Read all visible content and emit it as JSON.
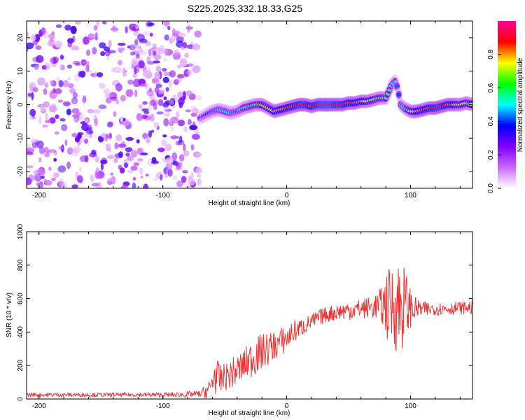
{
  "figure_title": "S225.2025.332.18.33.G25",
  "chart_data": [
    {
      "type": "heatmap",
      "title": "S225.2025.332.18.33.G25",
      "xlabel": "Height of straight line (km)",
      "ylabel": "Frequency (Hz)",
      "xlim": [
        -210,
        150
      ],
      "ylim": [
        -25,
        25
      ],
      "xticks": [
        -200,
        -100,
        0,
        100
      ],
      "xtick_labels": [
        "-200",
        "-100",
        "0",
        "100"
      ],
      "yticks": [
        -20,
        -10,
        0,
        10,
        20
      ],
      "ytick_labels": [
        "-20",
        "-10",
        "0",
        "10",
        "20"
      ],
      "colorbar": {
        "label": "Normalized spectral amplitude",
        "range": [
          0,
          1
        ],
        "ticks": [
          0.0,
          0.2,
          0.4,
          0.6,
          0.8
        ],
        "tick_labels": [
          "0.0",
          "0.2",
          "0.4",
          "0.6",
          "0.8"
        ],
        "colors": [
          "#ffffff",
          "#cc66ff",
          "#7f00ff",
          "#0000ff",
          "#00ffff",
          "#00ff00",
          "#ffff00",
          "#ff0000",
          "#ff0099"
        ]
      },
      "noise_region_x": [
        -210,
        -70
      ],
      "ridge": {
        "description": "dominant frequency track",
        "x": [
          -70,
          -65,
          -60,
          -55,
          -50,
          -45,
          -40,
          -35,
          -30,
          -25,
          -20,
          -15,
          -10,
          -5,
          0,
          5,
          10,
          15,
          20,
          25,
          30,
          35,
          40,
          45,
          50,
          55,
          60,
          65,
          70,
          75,
          80,
          85,
          88,
          90,
          92,
          95,
          100,
          105,
          110,
          115,
          120,
          125,
          130,
          135,
          140,
          145,
          150
        ],
        "y": [
          -4,
          -3,
          -2,
          -1.5,
          -2,
          -2.5,
          -2,
          -1,
          -0.5,
          0,
          0,
          -1,
          -2,
          -1.5,
          -1,
          -0.5,
          0,
          0,
          -0.5,
          0,
          0,
          0,
          0,
          0,
          0.5,
          0.5,
          1,
          1,
          1.5,
          2,
          2,
          6,
          7,
          4,
          0,
          -1,
          -2,
          -2,
          -1.5,
          -1,
          -1,
          -0.5,
          0,
          0,
          0,
          0.5,
          0
        ],
        "amplitude": [
          0.3,
          0.35,
          0.4,
          0.45,
          0.5,
          0.45,
          0.4,
          0.55,
          0.6,
          0.6,
          0.7,
          0.7,
          0.8,
          0.8,
          0.85,
          0.85,
          0.9,
          0.9,
          0.85,
          0.9,
          0.95,
          0.95,
          0.9,
          0.9,
          0.85,
          0.85,
          0.8,
          0.75,
          0.7,
          0.65,
          0.6,
          0.55,
          0.45,
          0.4,
          0.45,
          0.5,
          0.7,
          0.8,
          0.85,
          0.85,
          0.9,
          0.9,
          0.85,
          0.8,
          0.75,
          0.7,
          0.7
        ]
      }
    },
    {
      "type": "line",
      "xlabel": "Height of straight line (km)",
      "ylabel": "SNR (10 * v/v)",
      "xlim": [
        -210,
        150
      ],
      "ylim": [
        0,
        1000
      ],
      "xticks": [
        -200,
        -100,
        0,
        100
      ],
      "xtick_labels": [
        "-200",
        "-100",
        "0",
        "100"
      ],
      "yticks": [
        0,
        200,
        400,
        600,
        800,
        1000
      ],
      "ytick_labels": [
        "0",
        "200",
        "400",
        "600",
        "800",
        "1000"
      ],
      "series": [
        {
          "name": "SNR",
          "color": "#ee3333",
          "x": [
            -210,
            -180,
            -150,
            -120,
            -90,
            -70,
            -62,
            -58,
            -55,
            -50,
            -45,
            -40,
            -35,
            -30,
            -25,
            -20,
            -15,
            -10,
            -5,
            0,
            5,
            10,
            15,
            20,
            25,
            30,
            35,
            40,
            50,
            60,
            70,
            75,
            80,
            85,
            90,
            95,
            100,
            105,
            110,
            120,
            130,
            140,
            150
          ],
          "y": [
            25,
            25,
            25,
            25,
            25,
            30,
            60,
            150,
            110,
            130,
            150,
            170,
            200,
            230,
            260,
            280,
            300,
            320,
            340,
            360,
            400,
            420,
            440,
            460,
            480,
            500,
            510,
            520,
            530,
            540,
            550,
            560,
            560,
            560,
            560,
            560,
            545,
            540,
            535,
            540,
            540,
            545,
            545
          ],
          "noise_amplitude": [
            12,
            12,
            12,
            12,
            15,
            20,
            60,
            120,
            110,
            80,
            90,
            100,
            100,
            110,
            120,
            110,
            100,
            90,
            90,
            80,
            70,
            60,
            50,
            50,
            50,
            50,
            50,
            50,
            60,
            60,
            70,
            90,
            200,
            250,
            300,
            250,
            120,
            60,
            50,
            40,
            40,
            40,
            40
          ]
        }
      ]
    }
  ]
}
